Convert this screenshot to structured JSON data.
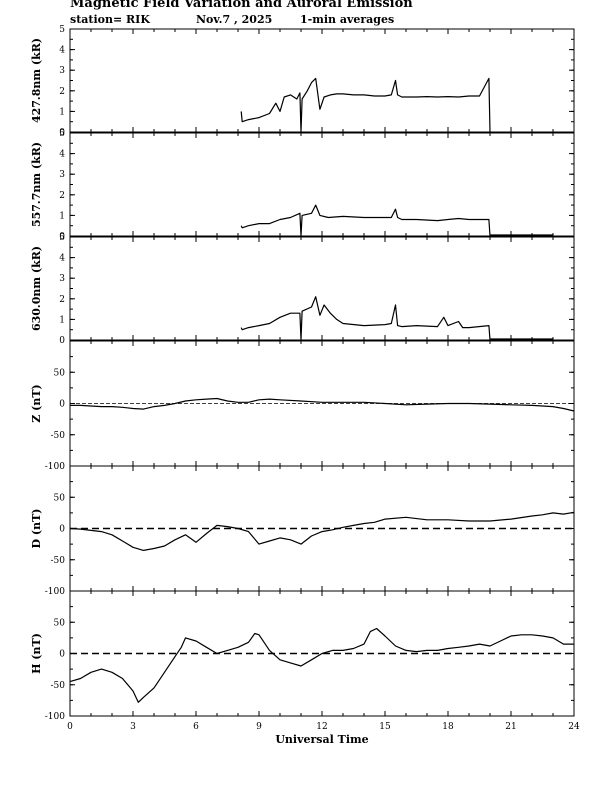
{
  "header": {
    "title": "Magnetic Field Variation and Auroral Emission",
    "station": "station= RIK",
    "date": "Nov.7 , 2025",
    "averaging": "1-min averages"
  },
  "chart_data": [
    {
      "type": "line",
      "ylabel": "427.8nm (kR)",
      "ylim": [
        0,
        5
      ],
      "yticks": [
        0,
        1,
        2,
        3,
        4,
        5
      ],
      "zero_line": false,
      "x": [
        0,
        8.1,
        8.15,
        8.2,
        8.5,
        9.0,
        9.5,
        9.8,
        10.0,
        10.2,
        10.5,
        10.8,
        10.95,
        11.0,
        11.05,
        11.3,
        11.5,
        11.7,
        11.9,
        12.1,
        12.4,
        12.7,
        13.0,
        13.5,
        14.0,
        14.5,
        15.0,
        15.3,
        15.5,
        15.6,
        15.8,
        16.5,
        17.0,
        17.5,
        18.0,
        18.5,
        19.0,
        19.5,
        19.95,
        20.0,
        20.05,
        24
      ],
      "y": [
        null,
        null,
        1.0,
        0.5,
        0.6,
        0.7,
        0.9,
        1.4,
        1.0,
        1.7,
        1.8,
        1.6,
        1.9,
        0.0,
        1.6,
        2.0,
        2.4,
        2.6,
        1.1,
        1.7,
        1.8,
        1.85,
        1.85,
        1.8,
        1.8,
        1.75,
        1.75,
        1.8,
        2.5,
        1.8,
        1.7,
        1.7,
        1.72,
        1.7,
        1.72,
        1.7,
        1.75,
        1.75,
        2.6,
        0.0,
        null,
        null
      ]
    },
    {
      "type": "line",
      "ylabel": "557.7nm (kR)",
      "ylim": [
        0,
        5
      ],
      "yticks": [
        0,
        1,
        2,
        3,
        4,
        5
      ],
      "zero_line": false,
      "x": [
        0,
        8.1,
        8.15,
        8.2,
        8.5,
        9.0,
        9.5,
        10.0,
        10.5,
        10.95,
        11.0,
        11.05,
        11.5,
        11.7,
        11.9,
        12.3,
        13.0,
        14.0,
        15.0,
        15.3,
        15.5,
        15.6,
        15.8,
        16.5,
        17.5,
        18.0,
        18.5,
        19.0,
        19.95,
        20.0,
        20.05,
        23.0,
        23.1,
        24
      ],
      "y": [
        null,
        null,
        0.5,
        0.4,
        0.5,
        0.6,
        0.6,
        0.8,
        0.9,
        1.1,
        0.0,
        1.0,
        1.1,
        1.5,
        1.0,
        0.9,
        0.95,
        0.9,
        0.9,
        0.9,
        1.3,
        0.9,
        0.8,
        0.8,
        0.75,
        0.8,
        0.85,
        0.8,
        0.8,
        0.0,
        0.05,
        0.05,
        null,
        null
      ]
    },
    {
      "type": "line",
      "ylabel": "630.0nm (kR)",
      "ylim": [
        0,
        5
      ],
      "yticks": [
        0,
        1,
        2,
        3,
        4,
        5
      ],
      "zero_line": false,
      "x": [
        0,
        8.1,
        8.15,
        8.2,
        8.5,
        9.0,
        9.5,
        10.0,
        10.5,
        10.95,
        11.0,
        11.05,
        11.5,
        11.7,
        11.9,
        12.1,
        12.4,
        12.7,
        13.0,
        14.0,
        15.0,
        15.3,
        15.5,
        15.6,
        15.8,
        16.5,
        17.5,
        17.8,
        18.0,
        18.5,
        18.7,
        19.0,
        19.95,
        20.0,
        20.05,
        23.0,
        23.1,
        24
      ],
      "y": [
        null,
        null,
        0.6,
        0.5,
        0.6,
        0.7,
        0.8,
        1.1,
        1.3,
        1.3,
        0.0,
        1.4,
        1.6,
        2.1,
        1.2,
        1.7,
        1.3,
        1.0,
        0.8,
        0.7,
        0.75,
        0.8,
        1.7,
        0.7,
        0.65,
        0.7,
        0.65,
        1.1,
        0.7,
        0.9,
        0.6,
        0.6,
        0.7,
        0.0,
        0.05,
        0.05,
        null,
        null
      ]
    },
    {
      "type": "line",
      "ylabel": "Z (nT)",
      "ylim": [
        -100,
        100
      ],
      "yticks": [
        -100,
        -50,
        0,
        50
      ],
      "zero_line": true,
      "x": [
        0,
        0.5,
        1,
        1.5,
        2,
        2.5,
        3,
        3.5,
        4,
        4.5,
        5,
        5.5,
        6,
        6.5,
        7,
        7.5,
        8,
        8.5,
        9,
        9.5,
        10,
        11,
        12,
        13,
        14,
        15,
        16,
        17,
        18,
        19,
        20,
        21,
        22,
        23,
        23.5,
        24
      ],
      "y": [
        -3,
        -3,
        -4,
        -5,
        -5,
        -6,
        -8,
        -9,
        -5,
        -3,
        0,
        4,
        6,
        7,
        8,
        4,
        2,
        2,
        6,
        7,
        6,
        4,
        2,
        2,
        2,
        0,
        -2,
        -1,
        0,
        0,
        -1,
        -2,
        -3,
        -5,
        -8,
        -12
      ]
    },
    {
      "type": "line",
      "ylabel": "D (nT)",
      "ylim": [
        -100,
        100
      ],
      "yticks": [
        -100,
        -50,
        0,
        50
      ],
      "zero_line": true,
      "x": [
        0,
        0.5,
        1,
        1.5,
        2,
        2.5,
        3,
        3.5,
        4,
        4.5,
        5,
        5.5,
        6,
        6.5,
        7,
        7.5,
        8,
        8.5,
        9,
        9.5,
        10,
        10.5,
        11,
        11.5,
        12,
        12.5,
        13,
        13.5,
        14,
        14.5,
        15,
        16,
        17,
        18,
        19,
        20,
        21,
        22,
        22.5,
        23,
        23.5,
        24
      ],
      "y": [
        0,
        -1,
        -3,
        -5,
        -10,
        -20,
        -30,
        -35,
        -32,
        -28,
        -18,
        -10,
        -22,
        -8,
        5,
        3,
        0,
        -5,
        -25,
        -20,
        -15,
        -18,
        -25,
        -12,
        -5,
        -2,
        2,
        5,
        8,
        10,
        15,
        18,
        14,
        14,
        12,
        12,
        15,
        20,
        22,
        25,
        23,
        26
      ]
    },
    {
      "type": "line",
      "ylabel": "H (nT)",
      "ylim": [
        -100,
        100
      ],
      "yticks": [
        -100,
        -50,
        0,
        50
      ],
      "zero_line": true,
      "x": [
        0,
        0.5,
        1,
        1.5,
        2,
        2.5,
        3,
        3.25,
        3.5,
        4,
        4.5,
        5,
        5.3,
        5.5,
        6,
        6.5,
        7,
        7.5,
        8,
        8.5,
        8.8,
        9,
        9.5,
        10,
        10.5,
        11,
        11.5,
        12,
        12.5,
        13,
        13.5,
        14,
        14.3,
        14.6,
        15,
        15.5,
        16,
        16.5,
        17,
        17.5,
        18,
        18.5,
        19,
        19.5,
        20,
        20.5,
        21,
        21.5,
        22,
        22.5,
        23,
        23.5,
        24
      ],
      "y": [
        -45,
        -40,
        -30,
        -25,
        -30,
        -40,
        -60,
        -78,
        -70,
        -55,
        -30,
        -5,
        10,
        25,
        20,
        10,
        0,
        5,
        10,
        18,
        32,
        30,
        5,
        -10,
        -15,
        -20,
        -10,
        0,
        5,
        5,
        8,
        15,
        35,
        40,
        28,
        12,
        5,
        3,
        5,
        5,
        8,
        10,
        12,
        15,
        12,
        20,
        28,
        30,
        30,
        28,
        25,
        15,
        15
      ]
    }
  ],
  "x_axis": {
    "label": "Universal Time",
    "ticks": [
      0,
      3,
      6,
      9,
      12,
      15,
      18,
      21,
      24
    ],
    "xlim": [
      0,
      24
    ]
  }
}
